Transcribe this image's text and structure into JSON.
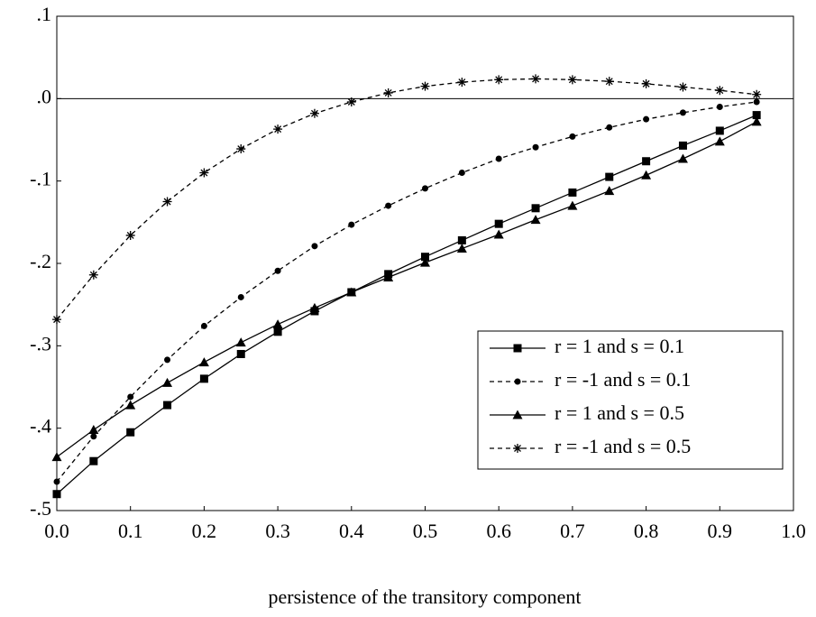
{
  "chart_data": {
    "type": "line",
    "x_label": "persistence of the transitory component",
    "x": [
      0,
      0.05,
      0.1,
      0.15,
      0.2,
      0.25,
      0.3,
      0.35,
      0.4,
      0.45,
      0.5,
      0.55,
      0.6,
      0.65,
      0.7,
      0.75,
      0.8,
      0.85,
      0.9,
      0.95
    ],
    "series": [
      {
        "name": "r = 1 and s = 0.1",
        "color": "#000000",
        "marker": "square",
        "dashed": false,
        "values": [
          -0.48,
          -0.44,
          -0.405,
          -0.372,
          -0.34,
          -0.31,
          -0.283,
          -0.258,
          -0.235,
          -0.213,
          -0.192,
          -0.172,
          -0.152,
          -0.133,
          -0.114,
          -0.095,
          -0.076,
          -0.057,
          -0.039,
          -0.02
        ]
      },
      {
        "name": "r = -1 and s = 0.1",
        "color": "#000000",
        "marker": "circle",
        "dashed": true,
        "values": [
          -0.465,
          -0.41,
          -0.362,
          -0.317,
          -0.276,
          -0.241,
          -0.209,
          -0.179,
          -0.153,
          -0.13,
          -0.109,
          -0.09,
          -0.073,
          -0.059,
          -0.046,
          -0.035,
          -0.025,
          -0.017,
          -0.01,
          -0.004
        ]
      },
      {
        "name": "r = 1 and s = 0.5",
        "color": "#000000",
        "marker": "triangle",
        "dashed": false,
        "values": [
          -0.435,
          -0.402,
          -0.372,
          -0.345,
          -0.32,
          -0.296,
          -0.274,
          -0.254,
          -0.235,
          -0.217,
          -0.199,
          -0.182,
          -0.165,
          -0.147,
          -0.13,
          -0.112,
          -0.093,
          -0.073,
          -0.052,
          -0.028
        ]
      },
      {
        "name": "r = -1 and s = 0.5",
        "color": "#000000",
        "marker": "star",
        "dashed": true,
        "values": [
          -0.268,
          -0.214,
          -0.166,
          -0.125,
          -0.09,
          -0.061,
          -0.037,
          -0.018,
          -0.004,
          0.007,
          0.015,
          0.02,
          0.023,
          0.024,
          0.023,
          0.021,
          0.018,
          0.014,
          0.01,
          0.005
        ]
      }
    ],
    "xlim": [
      0,
      1
    ],
    "xticks": [
      {
        "value": 0,
        "label": "0.0"
      },
      0.1,
      0.2,
      0.3,
      0.4,
      0.5,
      0.6,
      0.7,
      0.8,
      0.9,
      {
        "value": 1,
        "label": "1.0"
      }
    ],
    "ylim": [
      -0.5,
      0.1
    ],
    "yticks": [
      {
        "value": 0.1,
        "label": ".1"
      },
      {
        "value": 0,
        "label": ".0"
      },
      {
        "value": -0.1,
        "label": "-.1"
      },
      {
        "value": -0.2,
        "label": "-.2"
      },
      {
        "value": -0.3,
        "label": "-.3"
      },
      {
        "value": -0.4,
        "label": "-.4"
      },
      {
        "value": -0.5,
        "label": "-.5"
      }
    ],
    "zero_line": true,
    "legend": "lower right"
  }
}
